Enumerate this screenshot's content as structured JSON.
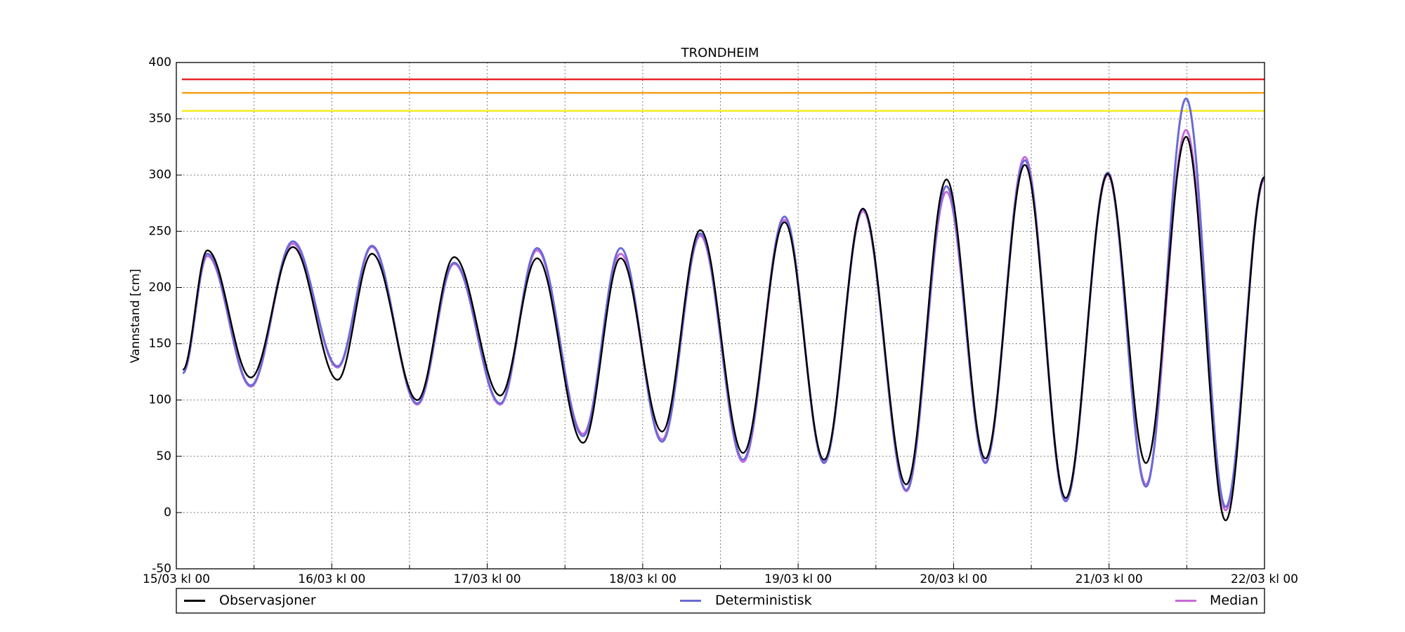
{
  "chart_data": {
    "type": "line",
    "title": "TRONDHEIM",
    "y_label": "Vannstand [cm]",
    "x": [
      1,
      4.8,
      11.5,
      18,
      24.9,
      30.2,
      37.2,
      42.9,
      50,
      55.7,
      62.8,
      68.6,
      75,
      80.9,
      87.5,
      93.9,
      100,
      106,
      112.7,
      118.9,
      124.9,
      131,
      137.3,
      143.8,
      149.7,
      155.9,
      162,
      168
    ],
    "series": [
      {
        "name": "Observasjoner",
        "color": "#000000",
        "values": [
          127,
          233,
          120,
          236,
          118,
          230,
          100,
          227,
          104,
          226,
          62,
          226,
          72,
          251,
          53,
          258,
          47,
          270,
          25,
          296,
          48,
          309,
          13,
          301,
          44,
          334,
          -7,
          298
        ]
      },
      {
        "name": "Deterministisk",
        "color": "#6a6ad8",
        "values": [
          124,
          230,
          113,
          241,
          130,
          237,
          97,
          222,
          97,
          235,
          68,
          235,
          63,
          248,
          47,
          263,
          44,
          270,
          20,
          290,
          44,
          313,
          10,
          302,
          23,
          368,
          5,
          298
        ]
      },
      {
        "name": "Median",
        "color": "#c76ad8",
        "values": [
          124,
          228,
          112,
          239,
          129,
          236,
          96,
          221,
          96,
          233,
          70,
          230,
          65,
          246,
          45,
          260,
          45,
          268,
          19,
          285,
          45,
          316,
          12,
          300,
          25,
          340,
          2,
          296
        ]
      }
    ],
    "hlines": [
      {
        "value": 385,
        "color": "#e8232a"
      },
      {
        "value": 373,
        "color": "#f5a11a"
      },
      {
        "value": 357,
        "color": "#f5ec1a"
      }
    ],
    "xlim": [
      0,
      168
    ],
    "xticks": [
      {
        "value": 0,
        "label": "15/03 kl 00"
      },
      {
        "value": 24,
        "label": "16/03 kl 00"
      },
      {
        "value": 48,
        "label": "17/03 kl 00"
      },
      {
        "value": 72,
        "label": "18/03 kl 00"
      },
      {
        "value": 96,
        "label": "19/03 kl 00"
      },
      {
        "value": 120,
        "label": "20/03 kl 00"
      },
      {
        "value": 144,
        "label": "21/03 kl 00"
      },
      {
        "value": 168,
        "label": "22/03 kl 00"
      }
    ],
    "xminor": [
      12,
      36,
      60,
      84,
      108,
      132,
      156
    ],
    "ylim": [
      -50,
      400
    ],
    "yticks": [
      -50,
      0,
      50,
      100,
      150,
      200,
      250,
      300,
      350,
      400
    ],
    "grid": true,
    "legend": "bottom"
  }
}
